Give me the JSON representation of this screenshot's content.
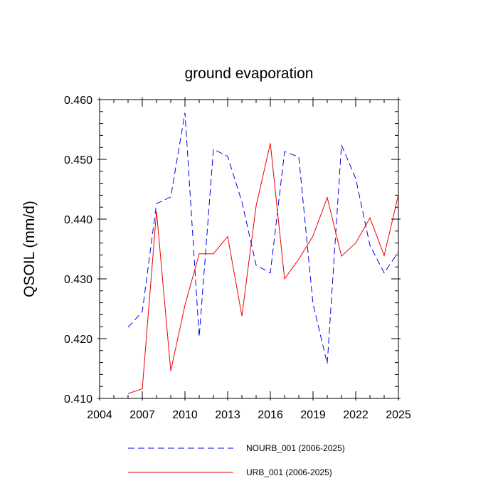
{
  "chart_data": {
    "type": "line",
    "title": "ground evaporation",
    "xlabel": "",
    "ylabel": "QSOIL  (mm/d)",
    "xlim": [
      2004,
      2025
    ],
    "ylim": [
      0.41,
      0.46
    ],
    "x_ticks": [
      2004,
      2007,
      2010,
      2013,
      2016,
      2019,
      2022,
      2025
    ],
    "x_tick_labels": [
      "2004",
      "2007",
      "2010",
      "2013",
      "2016",
      "2019",
      "2022",
      "2025"
    ],
    "y_ticks": [
      0.41,
      0.42,
      0.43,
      0.44,
      0.45,
      0.46
    ],
    "y_tick_labels": [
      "0.410",
      "0.420",
      "0.430",
      "0.440",
      "0.450",
      "0.460"
    ],
    "x_minor_step": 1,
    "y_minor_step": 0.002,
    "grid": false,
    "legend_position": "bottom",
    "x": [
      2006,
      2007,
      2008,
      2009,
      2010,
      2011,
      2012,
      2013,
      2014,
      2015,
      2016,
      2017,
      2018,
      2019,
      2020,
      2021,
      2022,
      2023,
      2024,
      2025
    ],
    "series": [
      {
        "name": "NOURB_001 (2006-2025)",
        "color": "#0000ee",
        "dash": "dashed",
        "values": [
          0.4219,
          0.4245,
          0.4426,
          0.4437,
          0.4578,
          0.4203,
          0.4517,
          0.4505,
          0.4429,
          0.4323,
          0.431,
          0.4513,
          0.4504,
          0.4258,
          0.4158,
          0.4524,
          0.4468,
          0.4356,
          0.431,
          0.4345
        ]
      },
      {
        "name": "URB_001 (2006-2025)",
        "color": "#ee0000",
        "dash": "solid",
        "values": [
          0.4108,
          0.4116,
          0.4413,
          0.4146,
          0.4256,
          0.4342,
          0.4342,
          0.4371,
          0.4238,
          0.4422,
          0.4527,
          0.43,
          0.4333,
          0.4372,
          0.4436,
          0.4338,
          0.436,
          0.4402,
          0.4339,
          0.4441
        ]
      }
    ]
  }
}
